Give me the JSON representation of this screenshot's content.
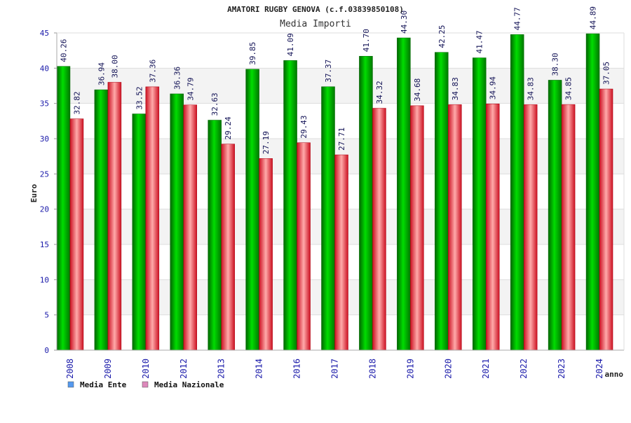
{
  "chart_data": {
    "type": "bar",
    "title": "AMATORI RUGBY GENOVA (c.f.03839850108)",
    "subtitle": "Media Importi",
    "ylabel": "Euro",
    "xlabel": "anno",
    "ylim": [
      0,
      45
    ],
    "yticks": [
      0,
      5,
      10,
      15,
      20,
      25,
      30,
      35,
      40,
      45
    ],
    "grid": true,
    "legend_position": "bottom-left",
    "categories": [
      "2008",
      "2009",
      "2010",
      "2012",
      "2013",
      "2014",
      "2016",
      "2017",
      "2018",
      "2019",
      "2020",
      "2021",
      "2022",
      "2023",
      "2024"
    ],
    "series": [
      {
        "name": "Media Ente",
        "color": "#00bb00",
        "legend_color": "#5599ee",
        "values": [
          40.26,
          36.94,
          33.52,
          36.36,
          32.63,
          39.85,
          41.09,
          37.37,
          41.7,
          44.3,
          42.25,
          41.47,
          44.77,
          38.3,
          44.89
        ],
        "labels": [
          "40.26",
          "36.94",
          "33.52",
          "36.36",
          "32.63",
          "39.85",
          "41.09",
          "37.37",
          "41.70",
          "44.30",
          "42.25",
          "41.47",
          "44.77",
          "38.30",
          "44.89"
        ]
      },
      {
        "name": "Media Nazionale",
        "color": "#ee3344",
        "legend_color": "#dd88bb",
        "values": [
          32.82,
          38.0,
          37.36,
          34.79,
          29.24,
          27.19,
          29.43,
          27.71,
          34.32,
          34.68,
          34.83,
          34.94,
          34.83,
          34.85,
          37.05
        ],
        "labels": [
          "32.82",
          "38.00",
          "37.36",
          "34.79",
          "29.24",
          "27.19",
          "29.43",
          "27.71",
          "34.32",
          "34.68",
          "34.83",
          "34.94",
          "34.83",
          "34.85",
          "37.05"
        ]
      }
    ]
  }
}
